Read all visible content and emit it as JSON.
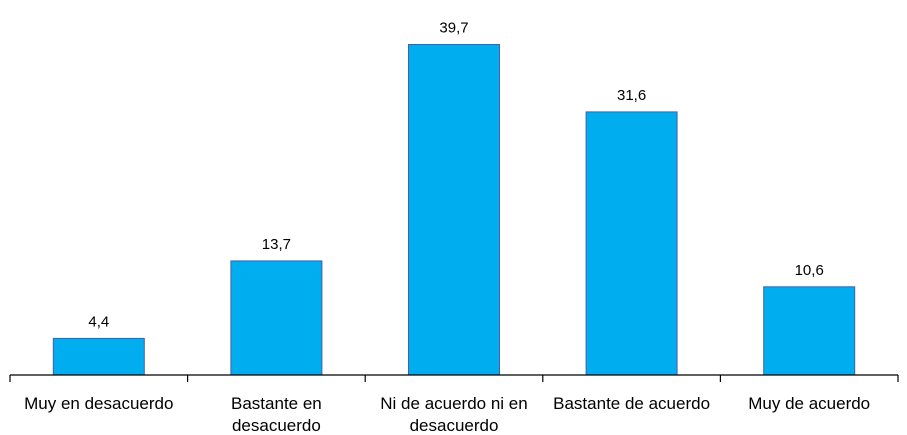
{
  "chart_data": {
    "type": "bar",
    "categories": [
      [
        "Muy en desacuerdo"
      ],
      [
        "Bastante en",
        "desacuerdo"
      ],
      [
        "Ni de acuerdo ni en",
        "desacuerdo"
      ],
      [
        "Bastante de acuerdo"
      ],
      [
        "Muy de acuerdo"
      ]
    ],
    "values": [
      4.4,
      13.7,
      39.7,
      31.6,
      10.6
    ],
    "value_labels": [
      "4,4",
      "13,7",
      "39,7",
      "31,6",
      "10,6"
    ],
    "ylim": [
      0,
      40
    ],
    "y_axis_visible": false,
    "grid": false,
    "legend": "none",
    "colors": {
      "bar_fill": "#00AEEF",
      "bar_stroke": "#4A5EA8",
      "axis": "#000000",
      "text": "#000000"
    }
  }
}
